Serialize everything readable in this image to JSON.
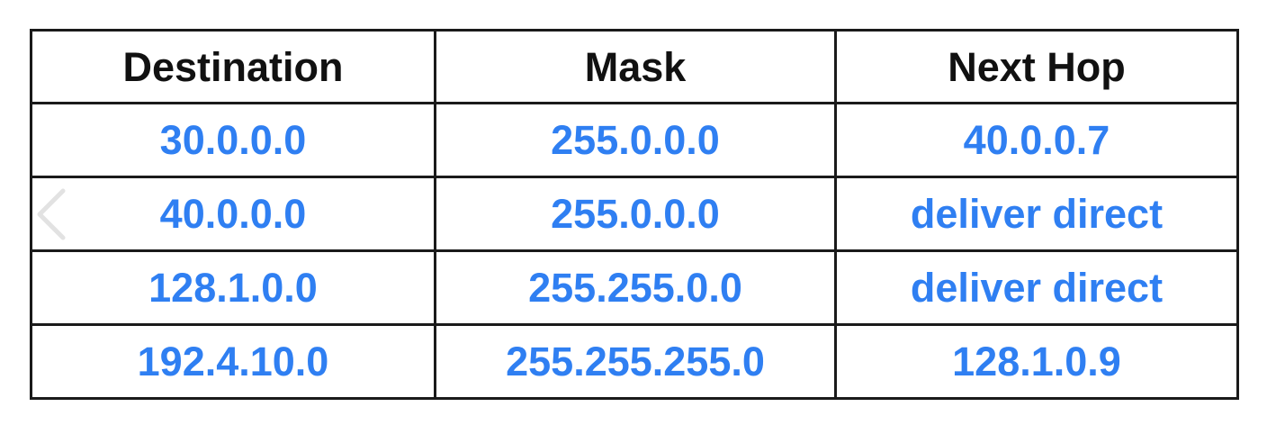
{
  "table": {
    "headers": [
      "Destination",
      "Mask",
      "Next Hop"
    ],
    "rows": [
      [
        "30.0.0.0",
        "255.0.0.0",
        "40.0.0.7"
      ],
      [
        "40.0.0.0",
        "255.0.0.0",
        "deliver direct"
      ],
      [
        "128.1.0.0",
        "255.255.0.0",
        "deliver direct"
      ],
      [
        "192.4.10.0",
        "255.255.255.0",
        "128.1.0.9"
      ]
    ]
  },
  "colors": {
    "header_text": "#111111",
    "cell_text": "#2f7ff2",
    "border": "#1a1a1a",
    "chevron": "#e2e2e2"
  },
  "icons": {
    "prev": "chevron-left-icon"
  }
}
